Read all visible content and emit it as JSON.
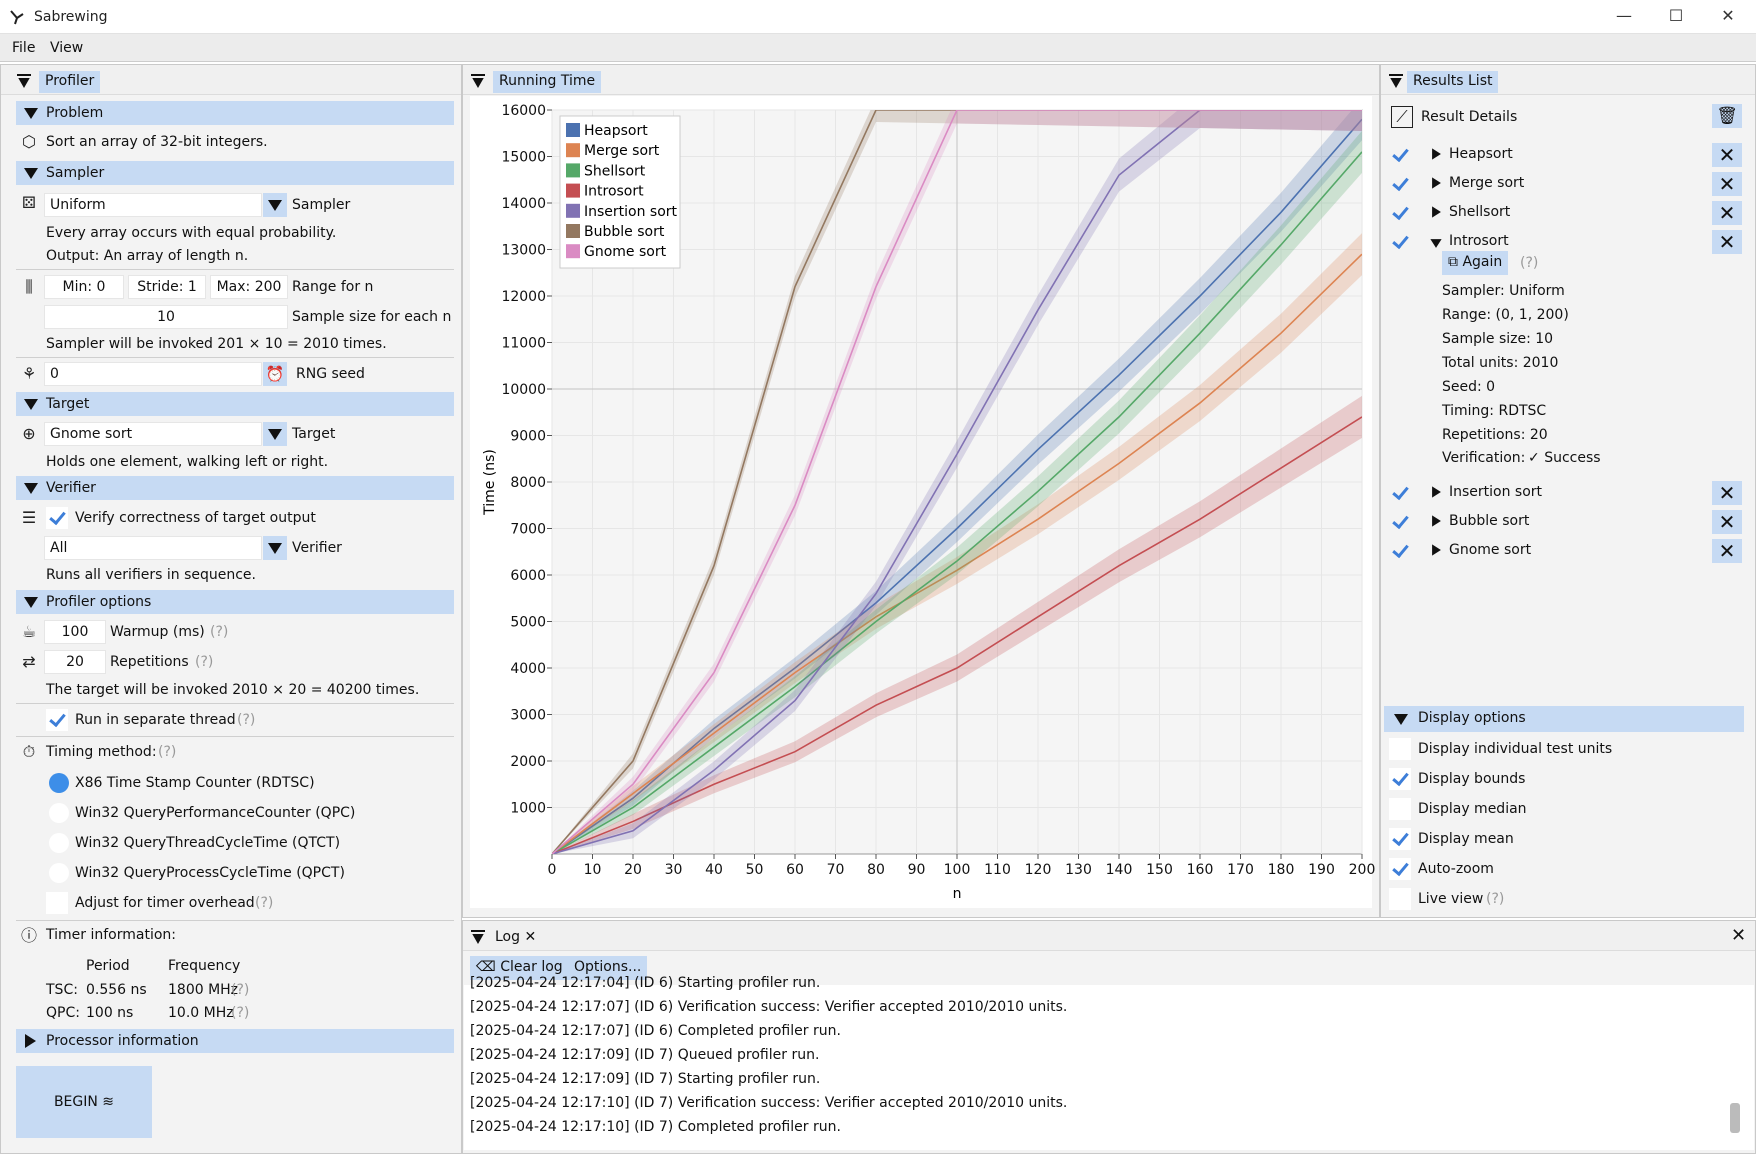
{
  "window": {
    "title": "Sabrewing",
    "minimize": "—",
    "maximize": "☐",
    "close": "✕"
  },
  "menu": {
    "file": "File",
    "view": "View"
  },
  "profiler": {
    "tab": "Profiler",
    "problem": {
      "header": "Problem",
      "desc": "Sort an array of 32-bit integers."
    },
    "sampler": {
      "header": "Sampler",
      "value": "Uniform",
      "label": "Sampler",
      "desc1": "Every array occurs with equal probability.",
      "desc2": "Output: An array of length n.",
      "min": "Min: 0",
      "stride": "Stride: 1",
      "max": "Max: 200",
      "range_label": "Range for n",
      "sample_size": "10",
      "sample_label": "Sample size for each n",
      "invoke": "Sampler will be invoked 201 × 10 = 2010 times.",
      "seed": "0",
      "seed_label": "RNG seed"
    },
    "target": {
      "header": "Target",
      "value": "Gnome sort",
      "label": "Target",
      "desc": "Holds one element, walking left or right."
    },
    "verifier": {
      "header": "Verifier",
      "verify_label": "Verify correctness of target output",
      "value": "All",
      "label": "Verifier",
      "desc": "Runs all verifiers in sequence."
    },
    "options": {
      "header": "Profiler options",
      "warmup": "100",
      "warmup_label": "Warmup (ms)",
      "reps": "20",
      "reps_label": "Repetitions",
      "help": "(?)",
      "invoke": "The target will be invoked 2010 × 20 = 40200 times.",
      "thread_label": "Run in separate thread",
      "timing_label": "Timing method:",
      "methods": [
        "X86 Time Stamp Counter (RDTSC)",
        "Win32 QueryPerformanceCounter (QPC)",
        "Win32 QueryThreadCycleTime (QTCT)",
        "Win32 QueryProcessCycleTime (QPCT)"
      ],
      "overhead_label": "Adjust for timer overhead",
      "timer_info": "Timer information:",
      "period_h": "Period",
      "freq_h": "Frequency",
      "tsc": "TSC:",
      "tsc_period": "0.556 ns",
      "tsc_freq": "1800 MHz",
      "qpc": "QPC:",
      "qpc_period": "100 ns",
      "qpc_freq": "10.0 MHz"
    },
    "processor": {
      "header": "Processor information"
    },
    "begin": "BEGIN"
  },
  "running_time": {
    "tab": "Running Time"
  },
  "chart_data": {
    "type": "line",
    "xlabel": "n",
    "ylabel": "Time (ns)",
    "xlim": [
      0,
      200
    ],
    "ylim": [
      0,
      16000
    ],
    "x_ticks": [
      0,
      10,
      20,
      30,
      40,
      50,
      60,
      70,
      80,
      90,
      100,
      110,
      120,
      130,
      140,
      150,
      160,
      170,
      180,
      190,
      200
    ],
    "y_ticks": [
      1000,
      2000,
      3000,
      4000,
      5000,
      6000,
      7000,
      8000,
      9000,
      10000,
      11000,
      12000,
      13000,
      14000,
      15000,
      16000
    ],
    "grid": "major at x=100, y=10000",
    "legend": "top-left",
    "x": [
      0,
      20,
      40,
      60,
      80,
      100,
      120,
      140,
      160,
      180,
      200
    ],
    "series": [
      {
        "name": "Heapsort",
        "color": "#4c72b0",
        "values": [
          0,
          1200,
          2700,
          4000,
          5400,
          7000,
          8700,
          10300,
          12000,
          13800,
          15800
        ]
      },
      {
        "name": "Merge sort",
        "color": "#dd8452",
        "values": [
          0,
          1300,
          2600,
          3900,
          5100,
          6100,
          7200,
          8400,
          9700,
          11200,
          12900
        ]
      },
      {
        "name": "Shellsort",
        "color": "#55a868",
        "values": [
          0,
          1000,
          2300,
          3600,
          5000,
          6300,
          7800,
          9400,
          11200,
          13100,
          15100
        ]
      },
      {
        "name": "Introsort",
        "color": "#c44e52",
        "values": [
          0,
          700,
          1500,
          2200,
          3200,
          4000,
          5100,
          6200,
          7200,
          8300,
          9400
        ]
      },
      {
        "name": "Insertion sort",
        "color": "#8172b3",
        "values": [
          0,
          500,
          1800,
          3300,
          5600,
          8600,
          11700,
          14600,
          16000,
          16000,
          16000
        ]
      },
      {
        "name": "Bubble sort",
        "color": "#937860",
        "values": [
          0,
          2000,
          6200,
          12200,
          16000,
          16000,
          16000,
          16000,
          16000,
          16000,
          16000
        ]
      },
      {
        "name": "Gnome sort",
        "color": "#da8bc3",
        "values": [
          0,
          1500,
          3900,
          7500,
          12200,
          16000,
          16000,
          16000,
          16000,
          16000,
          16000
        ]
      }
    ]
  },
  "results": {
    "tab": "Results List",
    "details": "Result Details",
    "items": [
      "Heapsort",
      "Merge sort",
      "Shellsort",
      "Introsort",
      "Insertion sort",
      "Bubble sort",
      "Gnome sort"
    ],
    "again": "Again",
    "again_help": "(?)",
    "info": [
      "Sampler: Uniform",
      "Range: (0, 1, 200)",
      "Sample size: 10",
      "Total units: 2010",
      "Seed: 0",
      "Timing: RDTSC",
      "Repetitions: 20"
    ],
    "verification_label": "Verification:",
    "verification_value": "Success"
  },
  "display": {
    "header": "Display options",
    "items": [
      "Display individual test units",
      "Display bounds",
      "Display median",
      "Display mean",
      "Auto-zoom",
      "Live view"
    ],
    "help": "(?)"
  },
  "log": {
    "tab": "Log",
    "clear": "Clear log",
    "options": "Options...",
    "lines": [
      "[2025-04-24 12:17:04] (ID 6) Starting profiler run.",
      "[2025-04-24 12:17:07] (ID 6) Verification success: Verifier accepted 2010/2010 units.",
      "[2025-04-24 12:17:07] (ID 6) Completed profiler run.",
      "[2025-04-24 12:17:09] (ID 7) Queued profiler run.",
      "[2025-04-24 12:17:09] (ID 7) Starting profiler run.",
      "[2025-04-24 12:17:10] (ID 7) Verification success: Verifier accepted 2010/2010 units.",
      "[2025-04-24 12:17:10] (ID 7) Completed profiler run."
    ]
  }
}
